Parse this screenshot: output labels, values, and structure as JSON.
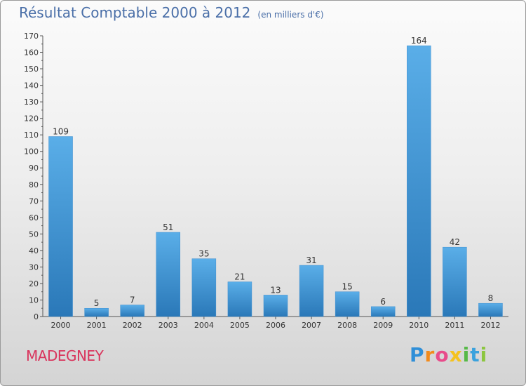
{
  "title": "Résultat Comptable 2000 à 2012",
  "unit": "(en milliers d'€)",
  "commune": "MADEGNEY",
  "logo": {
    "letters": [
      "P",
      "r",
      "o",
      "x",
      "i",
      "t",
      "i"
    ],
    "colors": [
      "#2f8fd8",
      "#f28b1c",
      "#e84c8b",
      "#f4c21f",
      "#56b947",
      "#3aa2dd",
      "#8cc63f"
    ]
  },
  "colors": {
    "bar_light": "#5aaee8",
    "bar_dark": "#2a78b8",
    "axis": "#555555",
    "grid": "#bdbdbd",
    "title": "#4a6fa8",
    "commune": "#d9345c"
  },
  "chart_data": {
    "type": "bar",
    "title": "Résultat Comptable 2000 à 2012",
    "xlabel": "",
    "ylabel": "en milliers d'€",
    "categories": [
      "2000",
      "2001",
      "2002",
      "2003",
      "2004",
      "2005",
      "2006",
      "2007",
      "2008",
      "2009",
      "2010",
      "2011",
      "2012"
    ],
    "values": [
      109,
      5,
      7,
      51,
      35,
      21,
      13,
      31,
      15,
      6,
      164,
      42,
      8
    ],
    "ylim": [
      0,
      170
    ],
    "yticks": [
      0,
      10,
      20,
      30,
      40,
      50,
      60,
      70,
      80,
      90,
      100,
      110,
      120,
      130,
      140,
      150,
      160,
      170
    ],
    "grid": false,
    "legend": "none"
  }
}
